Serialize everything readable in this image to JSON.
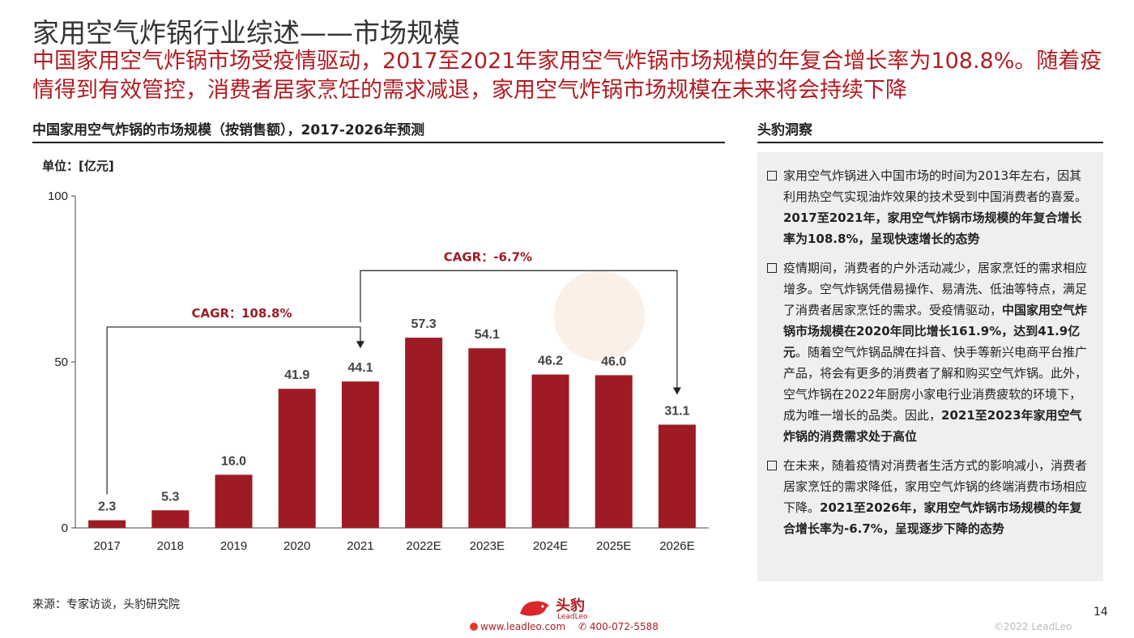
{
  "page": {
    "title": "家用空气炸锅行业综述——市场规模",
    "subtitle": "中国家用空气炸锅市场受疫情驱动，2017至2021年家用空气炸锅市场规模的年复合增长率为108.8%。随着疫情得到有效管控，消费者居家烹饪的需求减退，家用空气炸锅市场规模在未来将会持续下降"
  },
  "chart_section": {
    "title": "中国家用空气炸锅的市场规模（按销售额），2017-2026年预测",
    "unit": "单位：[亿元]"
  },
  "chart_data": {
    "type": "bar",
    "title": "中国家用空气炸锅的市场规模（按销售额），2017-2026年预测",
    "ylabel": "单位：[亿元]",
    "categories": [
      "2017",
      "2018",
      "2019",
      "2020",
      "2021",
      "2022E",
      "2023E",
      "2024E",
      "2025E",
      "2026E"
    ],
    "values": [
      2.3,
      5.3,
      16.0,
      41.9,
      44.1,
      57.3,
      54.1,
      46.2,
      46.0,
      31.1
    ],
    "value_labels": [
      "2.3",
      "5.3",
      "16.0",
      "41.9",
      "44.1",
      "57.3",
      "54.1",
      "46.2",
      "46.0",
      "31.1"
    ],
    "ylim": [
      0,
      100
    ],
    "yticks": [
      0,
      50,
      100
    ],
    "bar_color": "#9e1b24",
    "annotations": [
      {
        "label": "CAGR：108.8%",
        "from": "2017",
        "to": "2021"
      },
      {
        "label": "CAGR：-6.7%",
        "from": "2021",
        "to": "2026E"
      }
    ]
  },
  "insights": {
    "title": "头豹洞察",
    "items": [
      {
        "text": "家用空气炸锅进入中国市场的时间为2013年左右，因其利用热空气实现油炸效果的技术受到中国消费者的喜爱。",
        "bold": "2017至2021年，家用空气炸锅市场规模的年复合增长率为108.8%，呈现快速增长的态势",
        "after": ""
      },
      {
        "text": "疫情期间，消费者的户外活动减少，居家烹饪的需求相应增多。空气炸锅凭借易操作、易清洗、低油等特点，满足了消费者居家烹饪的需求。受疫情驱动，",
        "bold": "中国家用空气炸锅市场规模在2020年同比增长161.9%，达到41.9亿元",
        "after": "。随着空气炸锅品牌在抖音、快手等新兴电商平台推广产品，将会有更多的消费者了解和购买空气炸锅。此外，空气炸锅在2022年厨房小家电行业消费疲软的环境下，成为唯一增长的品类。因此，",
        "bold2": "2021至2023年家用空气炸锅的消费需求处于高位"
      },
      {
        "text": "在未来，随着疫情对消费者生活方式的影响减小，消费者居家烹饪的需求降低，家用空气炸锅的终端消费市场相应下降。",
        "bold": "2021至2026年，家用空气炸锅市场规模的年复合增长率为-6.7%，呈现逐步下降的态势",
        "after": ""
      }
    ]
  },
  "footer": {
    "source": "来源：专家访谈，头豹研究院",
    "logo_text": "头豹",
    "logo_sub": "LeadLeo",
    "website": "www.leadleo.com",
    "phone": "400-072-5588",
    "copyright": "©2022 LeadLeo",
    "page_number": "14"
  },
  "colors": {
    "accent": "#b01c22",
    "bar": "#9e1b24",
    "panel": "#efefef"
  }
}
